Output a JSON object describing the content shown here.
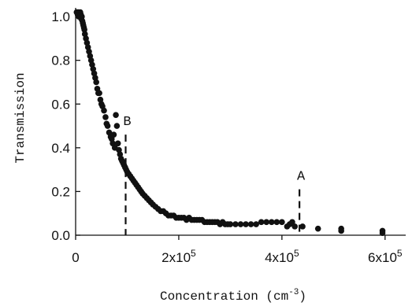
{
  "chart_data": {
    "type": "scatter",
    "xlabel": "Concentration (cm",
    "xlabel_superscript": "-3",
    "xlabel_suffix": ")",
    "ylabel": "Transmission",
    "xlim": [
      0,
      640000
    ],
    "ylim": [
      0,
      1.04
    ],
    "x_ticks": [
      {
        "value": 0,
        "label": "0",
        "exp": ""
      },
      {
        "value": 200000,
        "label": "2x10",
        "exp": "5"
      },
      {
        "value": 400000,
        "label": "4x10",
        "exp": "5"
      },
      {
        "value": 600000,
        "label": "6x10",
        "exp": "5"
      }
    ],
    "y_ticks": [
      {
        "value": 0.0,
        "label": "0.0"
      },
      {
        "value": 0.2,
        "label": "0.2"
      },
      {
        "value": 0.4,
        "label": "0.4"
      },
      {
        "value": 0.6,
        "label": "0.6"
      },
      {
        "value": 0.8,
        "label": "0.8"
      },
      {
        "value": 1.0,
        "label": "1.0"
      }
    ],
    "grid": false,
    "markers": [
      {
        "label": "B",
        "x": 97000,
        "y_top": 0.46
      },
      {
        "label": "A",
        "x": 434000,
        "y_top": 0.21
      }
    ],
    "series": [
      {
        "points": [
          [
            2000,
            1.02
          ],
          [
            4000,
            1.01
          ],
          [
            5000,
            1.02
          ],
          [
            6000,
            1.0
          ],
          [
            7000,
            1.01
          ],
          [
            8000,
            1.0
          ],
          [
            9000,
            1.02
          ],
          [
            10000,
            1.01
          ],
          [
            11000,
            0.99
          ],
          [
            12000,
            1.0
          ],
          [
            13000,
            0.98
          ],
          [
            14000,
            0.97
          ],
          [
            15000,
            0.96
          ],
          [
            16000,
            0.95
          ],
          [
            17000,
            0.94
          ],
          [
            18000,
            0.92
          ],
          [
            20000,
            0.9
          ],
          [
            22000,
            0.88
          ],
          [
            24000,
            0.86
          ],
          [
            26000,
            0.84
          ],
          [
            28000,
            0.82
          ],
          [
            30000,
            0.8
          ],
          [
            32000,
            0.78
          ],
          [
            34000,
            0.76
          ],
          [
            36000,
            0.74
          ],
          [
            38000,
            0.72
          ],
          [
            40000,
            0.7
          ],
          [
            42000,
            0.67
          ],
          [
            44000,
            0.65
          ],
          [
            46000,
            0.65
          ],
          [
            48000,
            0.62
          ],
          [
            50000,
            0.6
          ],
          [
            52000,
            0.59
          ],
          [
            55000,
            0.57
          ],
          [
            58000,
            0.54
          ],
          [
            60000,
            0.51
          ],
          [
            62000,
            0.5
          ],
          [
            65000,
            0.47
          ],
          [
            68000,
            0.45
          ],
          [
            70000,
            0.44
          ],
          [
            72000,
            0.42
          ],
          [
            74000,
            0.46
          ],
          [
            76000,
            0.4
          ],
          [
            78000,
            0.55
          ],
          [
            80000,
            0.5
          ],
          [
            82000,
            0.42
          ],
          [
            84000,
            0.39
          ],
          [
            86000,
            0.37
          ],
          [
            88000,
            0.35
          ],
          [
            90000,
            0.34
          ],
          [
            92000,
            0.33
          ],
          [
            94000,
            0.32
          ],
          [
            96000,
            0.31
          ],
          [
            98000,
            0.3
          ],
          [
            100000,
            0.29
          ],
          [
            103000,
            0.28
          ],
          [
            106000,
            0.27
          ],
          [
            109000,
            0.26
          ],
          [
            112000,
            0.25
          ],
          [
            115000,
            0.24
          ],
          [
            118000,
            0.23
          ],
          [
            121000,
            0.22
          ],
          [
            124000,
            0.21
          ],
          [
            127000,
            0.2
          ],
          [
            130000,
            0.19
          ],
          [
            134000,
            0.18
          ],
          [
            138000,
            0.17
          ],
          [
            142000,
            0.16
          ],
          [
            146000,
            0.15
          ],
          [
            150000,
            0.14
          ],
          [
            155000,
            0.13
          ],
          [
            160000,
            0.12
          ],
          [
            165000,
            0.11
          ],
          [
            170000,
            0.11
          ],
          [
            175000,
            0.1
          ],
          [
            180000,
            0.09
          ],
          [
            185000,
            0.09
          ],
          [
            190000,
            0.09
          ],
          [
            195000,
            0.08
          ],
          [
            200000,
            0.08
          ],
          [
            205000,
            0.08
          ],
          [
            210000,
            0.08
          ],
          [
            215000,
            0.07
          ],
          [
            220000,
            0.08
          ],
          [
            225000,
            0.07
          ],
          [
            230000,
            0.07
          ],
          [
            235000,
            0.07
          ],
          [
            240000,
            0.07
          ],
          [
            245000,
            0.07
          ],
          [
            250000,
            0.06
          ],
          [
            255000,
            0.06
          ],
          [
            260000,
            0.06
          ],
          [
            265000,
            0.06
          ],
          [
            270000,
            0.06
          ],
          [
            275000,
            0.06
          ],
          [
            280000,
            0.05
          ],
          [
            285000,
            0.06
          ],
          [
            290000,
            0.05
          ],
          [
            295000,
            0.05
          ],
          [
            300000,
            0.05
          ],
          [
            310000,
            0.05
          ],
          [
            320000,
            0.05
          ],
          [
            330000,
            0.05
          ],
          [
            340000,
            0.05
          ],
          [
            350000,
            0.05
          ],
          [
            360000,
            0.06
          ],
          [
            370000,
            0.06
          ],
          [
            380000,
            0.06
          ],
          [
            390000,
            0.06
          ],
          [
            400000,
            0.06
          ],
          [
            410000,
            0.04
          ],
          [
            415000,
            0.05
          ],
          [
            420000,
            0.06
          ],
          [
            425000,
            0.04
          ],
          [
            440000,
            0.04
          ],
          [
            470000,
            0.03
          ],
          [
            515000,
            0.02
          ],
          [
            515000,
            0.03
          ],
          [
            595000,
            0.02
          ],
          [
            595000,
            0.01
          ]
        ]
      }
    ]
  }
}
